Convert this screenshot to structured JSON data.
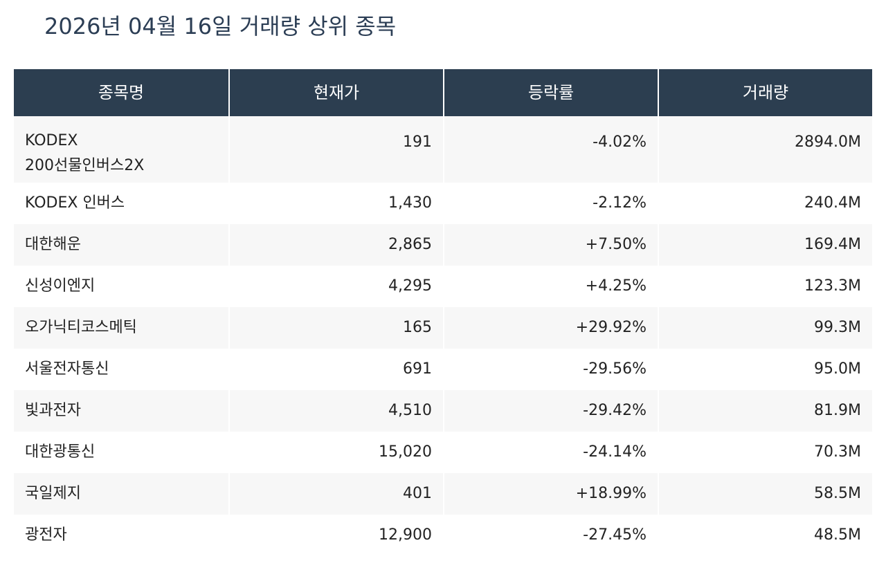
{
  "page": {
    "title": "2026년 04월 16일 거래량 상위 종목"
  },
  "colors": {
    "header_bg": "#2c3e50",
    "up": "#e0493b",
    "down": "#2e86ab",
    "title": "#2c3e55"
  },
  "table": {
    "columns": [
      "종목명",
      "현재가",
      "등락률",
      "거래량"
    ],
    "rows": [
      {
        "name": "KODEX 200선물인버스2X",
        "name_lines": [
          "KODEX",
          "200선물인버스2X"
        ],
        "price": "191",
        "change": "-4.02%",
        "direction": "down",
        "volume": "2894.0M"
      },
      {
        "name": "KODEX 인버스",
        "price": "1,430",
        "change": "-2.12%",
        "direction": "down",
        "volume": "240.4M"
      },
      {
        "name": "대한해운",
        "price": "2,865",
        "change": "+7.50%",
        "direction": "up",
        "volume": "169.4M"
      },
      {
        "name": "신성이엔지",
        "price": "4,295",
        "change": "+4.25%",
        "direction": "up",
        "volume": "123.3M"
      },
      {
        "name": "오가닉티코스메틱",
        "price": "165",
        "change": "+29.92%",
        "direction": "up",
        "volume": "99.3M"
      },
      {
        "name": "서울전자통신",
        "price": "691",
        "change": "-29.56%",
        "direction": "down",
        "volume": "95.0M"
      },
      {
        "name": "빛과전자",
        "price": "4,510",
        "change": "-29.42%",
        "direction": "down",
        "volume": "81.9M"
      },
      {
        "name": "대한광통신",
        "price": "15,020",
        "change": "-24.14%",
        "direction": "down",
        "volume": "70.3M"
      },
      {
        "name": "국일제지",
        "price": "401",
        "change": "+18.99%",
        "direction": "up",
        "volume": "58.5M"
      },
      {
        "name": "광전자",
        "price": "12,900",
        "change": "-27.45%",
        "direction": "down",
        "volume": "48.5M"
      }
    ]
  }
}
